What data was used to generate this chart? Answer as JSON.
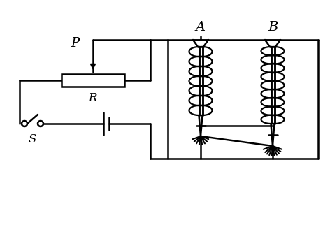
{
  "bg_color": "#ffffff",
  "line_color": "#000000",
  "lw": 1.8,
  "label_A": "A",
  "label_B": "B",
  "label_P": "P",
  "label_R": "R",
  "label_S": "S",
  "figsize": [
    4.72,
    3.25
  ],
  "dpi": 100
}
